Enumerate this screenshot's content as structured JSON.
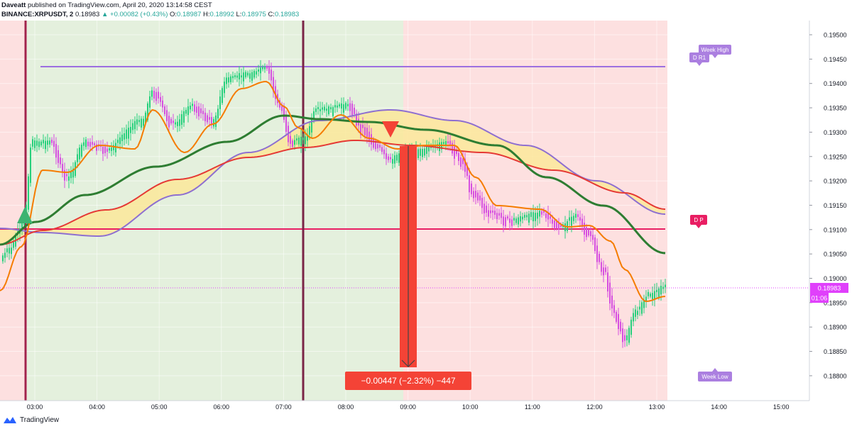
{
  "header": {
    "author": "Daveatt",
    "published": "published on TradingView.com, April 20, 2020 13:14:58 CEST",
    "symbol": "BINANCE:XRPUSDT, 2",
    "last": "0.18983",
    "change": "▲ +0.00082 (+0.43%)",
    "o_label": "O:",
    "o": "0.18987",
    "h_label": "H:",
    "h": "0.18992",
    "l_label": "L:",
    "l": "0.18975",
    "c_label": "C:",
    "c": "0.18983"
  },
  "footer": {
    "brand": "TradingView"
  },
  "price_axis": {
    "ticks": [
      "0.19500",
      "0.19450",
      "0.19400",
      "0.19350",
      "0.19300",
      "0.19250",
      "0.19200",
      "0.19150",
      "0.19100",
      "0.19050",
      "0.19000",
      "0.18950",
      "0.18900",
      "0.18850",
      "0.18800"
    ],
    "current_price": "0.18983",
    "countdown": "01:06"
  },
  "time_axis": {
    "ticks": [
      "03:00",
      "04:00",
      "05:00",
      "06:00",
      "07:00",
      "08:00",
      "09:00",
      "10:00",
      "11:00",
      "12:00",
      "13:00",
      "14:00",
      "15:00"
    ]
  },
  "labels": {
    "week_high": "Week High",
    "week_low": "Week Low",
    "dr1": "D R1",
    "dp": "D P"
  },
  "measure": {
    "text": "−0.00447 (−2.32%) −447"
  },
  "colors": {
    "up": "#26d07c",
    "down": "#d64fe0",
    "ema_fast": "#f57c00",
    "ema_mid": "#2e7d32",
    "ema_slow": "#e53935",
    "ribbon_top": "#8e6fd0",
    "ribbon_fill": "#fff176",
    "week_high": "#9c6fe0",
    "dp_line": "#e91e63",
    "green_zone": "#e6f2e0",
    "red_zone": "#fde0e0",
    "measure": "#f44336",
    "current_price": "#e040fb"
  }
}
